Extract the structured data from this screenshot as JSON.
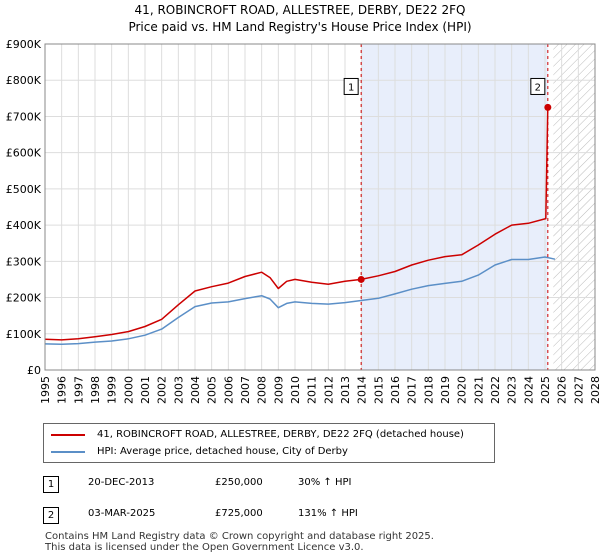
{
  "title_line1": "41, ROBINCROFT ROAD, ALLESTREE, DERBY, DE22 2FQ",
  "title_line2": "Price paid vs. HM Land Registry's House Price Index (HPI)",
  "chart_data": {
    "type": "line",
    "title": "41, ROBINCROFT ROAD, ALLESTREE, DERBY, DE22 2FQ — Price paid vs. HM Land Registry's House Price Index (HPI)",
    "xlim": [
      1995,
      2028
    ],
    "ylim": [
      0,
      900000
    ],
    "x_ticks": [
      "1995",
      "1996",
      "1997",
      "1998",
      "1999",
      "2000",
      "2001",
      "2002",
      "2003",
      "2004",
      "2005",
      "2006",
      "2007",
      "2008",
      "2009",
      "2010",
      "2011",
      "2012",
      "2013",
      "2014",
      "2015",
      "2016",
      "2017",
      "2018",
      "2019",
      "2020",
      "2021",
      "2022",
      "2023",
      "2024",
      "2025",
      "2026",
      "2027",
      "2028"
    ],
    "y_ticks": [
      {
        "value": 0,
        "label": "£0"
      },
      {
        "value": 100000,
        "label": "£100K"
      },
      {
        "value": 200000,
        "label": "£200K"
      },
      {
        "value": 300000,
        "label": "£300K"
      },
      {
        "value": 400000,
        "label": "£400K"
      },
      {
        "value": 500000,
        "label": "£500K"
      },
      {
        "value": 600000,
        "label": "£600K"
      },
      {
        "value": 700000,
        "label": "£700K"
      },
      {
        "value": 800000,
        "label": "£800K"
      },
      {
        "value": 900000,
        "label": "£900K"
      }
    ],
    "grid": true,
    "highlight_span": [
      2013.97,
      2025.17
    ],
    "forecast_hatch_from": 2025.5,
    "series": [
      {
        "name": "41, ROBINCROFT ROAD, ALLESTREE, DERBY, DE22 2FQ (detached house)",
        "color": "#cc0000",
        "points": [
          [
            1995,
            85000
          ],
          [
            1996,
            83000
          ],
          [
            1997,
            86000
          ],
          [
            1998,
            92000
          ],
          [
            1999,
            98000
          ],
          [
            2000,
            106000
          ],
          [
            2001,
            120000
          ],
          [
            2002,
            140000
          ],
          [
            2003,
            180000
          ],
          [
            2004,
            218000
          ],
          [
            2005,
            230000
          ],
          [
            2006,
            240000
          ],
          [
            2007,
            258000
          ],
          [
            2008,
            270000
          ],
          [
            2008.5,
            255000
          ],
          [
            2009,
            225000
          ],
          [
            2009.5,
            245000
          ],
          [
            2010,
            250000
          ],
          [
            2011,
            242000
          ],
          [
            2012,
            237000
          ],
          [
            2013,
            245000
          ],
          [
            2013.97,
            250000
          ],
          [
            2015,
            260000
          ],
          [
            2016,
            272000
          ],
          [
            2017,
            290000
          ],
          [
            2018,
            303000
          ],
          [
            2019,
            313000
          ],
          [
            2020,
            318000
          ],
          [
            2021,
            345000
          ],
          [
            2022,
            375000
          ],
          [
            2023,
            400000
          ],
          [
            2024,
            405000
          ],
          [
            2025.05,
            418000
          ],
          [
            2025.17,
            725000
          ]
        ]
      },
      {
        "name": "HPI: Average price, detached house, City of Derby",
        "color": "#5b8fc7",
        "points": [
          [
            1995,
            72000
          ],
          [
            1996,
            71000
          ],
          [
            1997,
            73000
          ],
          [
            1998,
            77000
          ],
          [
            1999,
            80000
          ],
          [
            2000,
            86000
          ],
          [
            2001,
            96000
          ],
          [
            2002,
            113000
          ],
          [
            2003,
            145000
          ],
          [
            2004,
            175000
          ],
          [
            2005,
            185000
          ],
          [
            2006,
            188000
          ],
          [
            2007,
            197000
          ],
          [
            2008,
            205000
          ],
          [
            2008.5,
            196000
          ],
          [
            2009,
            172000
          ],
          [
            2009.5,
            184000
          ],
          [
            2010,
            188000
          ],
          [
            2011,
            184000
          ],
          [
            2012,
            182000
          ],
          [
            2013,
            186000
          ],
          [
            2013.97,
            192000
          ],
          [
            2015,
            198000
          ],
          [
            2016,
            210000
          ],
          [
            2017,
            223000
          ],
          [
            2018,
            233000
          ],
          [
            2019,
            239000
          ],
          [
            2020,
            245000
          ],
          [
            2021,
            262000
          ],
          [
            2022,
            290000
          ],
          [
            2023,
            305000
          ],
          [
            2024,
            305000
          ],
          [
            2025,
            312000
          ],
          [
            2025.6,
            306000
          ]
        ]
      }
    ],
    "annotations": [
      {
        "label": "1",
        "x": 2013.97,
        "y": 250000,
        "box_y": 780000
      },
      {
        "label": "2",
        "x": 2025.17,
        "y": 725000,
        "box_y": 780000
      }
    ]
  },
  "legend": {
    "property_label": "41, ROBINCROFT ROAD, ALLESTREE, DERBY, DE22 2FQ (detached house)",
    "hpi_label": "HPI: Average price, detached house, City of Derby"
  },
  "transactions": [
    {
      "num": "1",
      "date": "20-DEC-2013",
      "price": "£250,000",
      "delta": "30% ↑ HPI"
    },
    {
      "num": "2",
      "date": "03-MAR-2025",
      "price": "£725,000",
      "delta": "131% ↑ HPI"
    }
  ],
  "footer_line1": "Contains HM Land Registry data © Crown copyright and database right 2025.",
  "footer_line2": "This data is licensed under the Open Government Licence v3.0."
}
